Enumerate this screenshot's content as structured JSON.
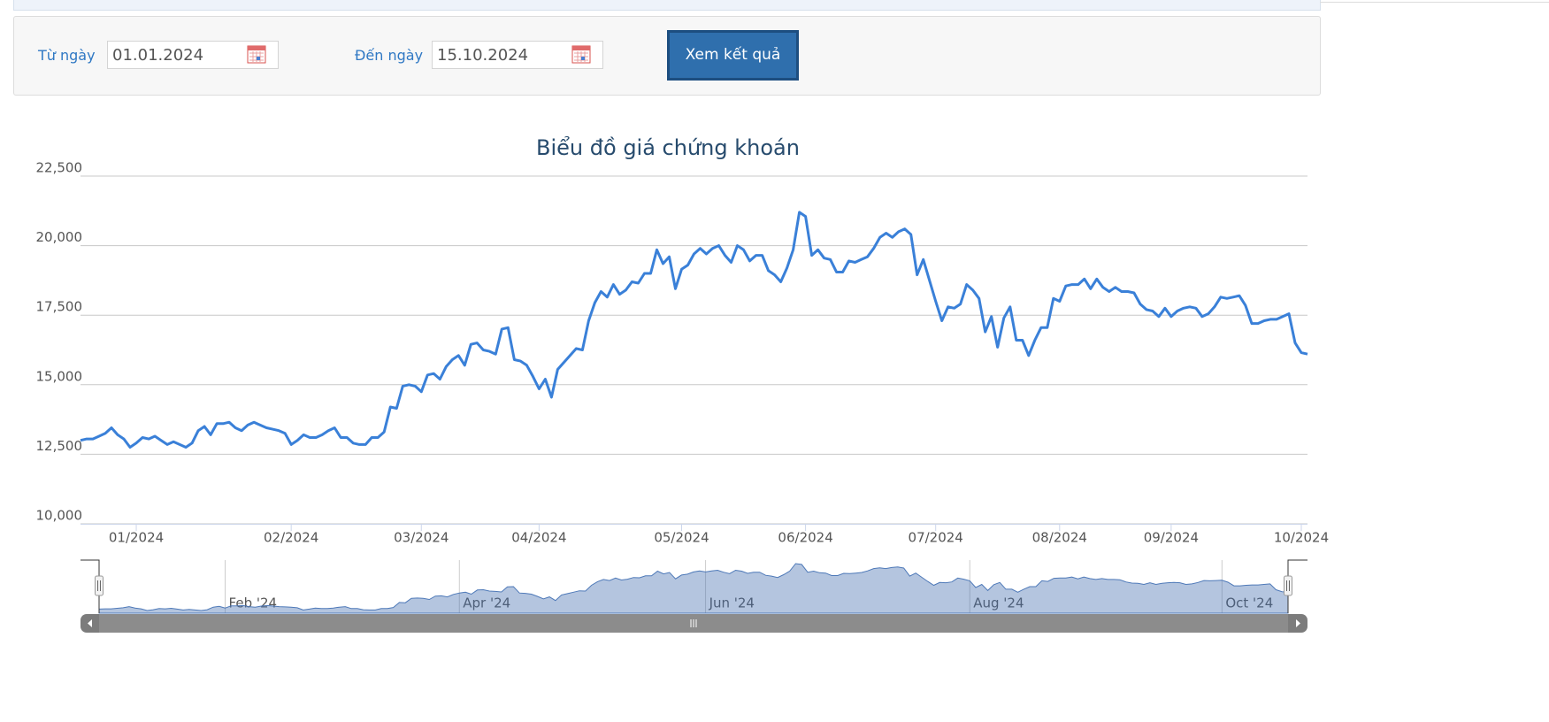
{
  "form": {
    "from": {
      "label": "Từ ngày",
      "value": "01.01.2024"
    },
    "to": {
      "label": "Đến ngày",
      "value": "15.10.2024"
    },
    "submit": "Xem kết quả"
  },
  "chart_data": {
    "type": "line",
    "title": "Biểu đồ giá chứng khoán",
    "color": "#3a80d8",
    "grid": true,
    "ylim": [
      10000,
      22500
    ],
    "yticks": [
      {
        "value": 10000,
        "label": "10,000"
      },
      {
        "value": 12500,
        "label": "12,500"
      },
      {
        "value": 15000,
        "label": "15,000"
      },
      {
        "value": 17500,
        "label": "17,500"
      },
      {
        "value": 20000,
        "label": "20,000"
      },
      {
        "value": 22500,
        "label": "22,500"
      }
    ],
    "categories": [
      null,
      null,
      null,
      null,
      null,
      null,
      null,
      null,
      null,
      "01/2024",
      null,
      null,
      null,
      null,
      null,
      null,
      null,
      null,
      null,
      null,
      null,
      null,
      null,
      null,
      null,
      null,
      null,
      null,
      null,
      null,
      null,
      null,
      null,
      null,
      "02/2024",
      null,
      null,
      null,
      null,
      null,
      null,
      null,
      null,
      null,
      null,
      null,
      null,
      null,
      null,
      null,
      null,
      null,
      null,
      null,
      null,
      "03/2024",
      null,
      null,
      null,
      null,
      null,
      null,
      null,
      null,
      null,
      null,
      null,
      null,
      null,
      null,
      null,
      null,
      null,
      null,
      "04/2024",
      null,
      null,
      null,
      null,
      null,
      null,
      null,
      null,
      null,
      null,
      null,
      null,
      null,
      null,
      null,
      null,
      null,
      null,
      null,
      null,
      null,
      null,
      "05/2024",
      null,
      null,
      null,
      null,
      null,
      null,
      null,
      null,
      null,
      null,
      null,
      null,
      null,
      null,
      null,
      null,
      null,
      null,
      null,
      "06/2024",
      null,
      null,
      null,
      null,
      null,
      null,
      null,
      null,
      null,
      null,
      null,
      null,
      null,
      null,
      null,
      null,
      null,
      null,
      null,
      null,
      "07/2024",
      null,
      null,
      null,
      null,
      null,
      null,
      null,
      null,
      null,
      null,
      null,
      null,
      null,
      null,
      null,
      null,
      null,
      null,
      null,
      "08/2024",
      null,
      null,
      null,
      null,
      null,
      null,
      null,
      null,
      null,
      null,
      null,
      null,
      null,
      null,
      null,
      null,
      null,
      "09/2024",
      null,
      null,
      null,
      null,
      null,
      null,
      null,
      null,
      null,
      null,
      null,
      null,
      null,
      null,
      null,
      null,
      null,
      null,
      null,
      null,
      "10/2024",
      null
    ],
    "navigator_categories": [
      null,
      null,
      null,
      null,
      null,
      null,
      null,
      null,
      null,
      null,
      null,
      null,
      null,
      null,
      null,
      null,
      null,
      null,
      null,
      null,
      null,
      "Feb '24",
      null,
      null,
      null,
      null,
      null,
      null,
      null,
      null,
      null,
      null,
      null,
      null,
      null,
      null,
      null,
      null,
      null,
      null,
      null,
      null,
      null,
      null,
      null,
      null,
      null,
      null,
      null,
      null,
      null,
      null,
      null,
      null,
      null,
      null,
      null,
      null,
      null,
      null,
      "Apr '24",
      null,
      null,
      null,
      null,
      null,
      null,
      null,
      null,
      null,
      null,
      null,
      null,
      null,
      null,
      null,
      null,
      null,
      null,
      null,
      null,
      null,
      null,
      null,
      null,
      null,
      null,
      null,
      null,
      null,
      null,
      null,
      null,
      null,
      null,
      null,
      null,
      null,
      null,
      null,
      null,
      "Jun '24",
      null,
      null,
      null,
      null,
      null,
      null,
      null,
      null,
      null,
      null,
      null,
      null,
      null,
      null,
      null,
      null,
      null,
      null,
      null,
      null,
      null,
      null,
      null,
      null,
      null,
      null,
      null,
      null,
      null,
      null,
      null,
      null,
      null,
      null,
      null,
      null,
      null,
      null,
      null,
      null,
      null,
      null,
      null,
      "Aug '24",
      null,
      null,
      null,
      null,
      null,
      null,
      null,
      null,
      null,
      null,
      null,
      null,
      null,
      null,
      null,
      null,
      null,
      null,
      null,
      null,
      null,
      null,
      null,
      null,
      null,
      null,
      null,
      null,
      null,
      null,
      null,
      null,
      null,
      null,
      null,
      null,
      null,
      null,
      null,
      null,
      null,
      "Oct '24",
      null,
      null,
      null,
      null,
      null,
      null,
      null,
      null,
      null,
      null,
      null
    ],
    "values": [
      13000,
      13050,
      13050,
      13150,
      13250,
      13450,
      13200,
      13050,
      12750,
      12900,
      13100,
      13050,
      13150,
      13000,
      12850,
      12950,
      12850,
      12750,
      12900,
      13350,
      13500,
      13200,
      13600,
      13600,
      13650,
      13450,
      13350,
      13550,
      13650,
      13550,
      13450,
      13400,
      13350,
      13250,
      12850,
      13000,
      13200,
      13100,
      13100,
      13200,
      13350,
      13450,
      13100,
      13100,
      12900,
      12850,
      12850,
      13100,
      13100,
      13300,
      14200,
      14150,
      14950,
      15000,
      14950,
      14750,
      15350,
      15400,
      15200,
      15650,
      15900,
      16050,
      15700,
      16450,
      16500,
      16250,
      16200,
      16100,
      17000,
      17050,
      15900,
      15850,
      15700,
      15300,
      14850,
      15200,
      14550,
      15550,
      15800,
      16050,
      16300,
      16250,
      17300,
      17950,
      18350,
      18150,
      18600,
      18250,
      18400,
      18700,
      18650,
      19000,
      19000,
      19850,
      19350,
      19600,
      18450,
      19150,
      19300,
      19700,
      19900,
      19700,
      19900,
      20000,
      19650,
      19400,
      20000,
      19850,
      19450,
      19650,
      19650,
      19100,
      18950,
      18700,
      19200,
      19850,
      21200,
      21050,
      19650,
      19850,
      19550,
      19500,
      19050,
      19050,
      19450,
      19400,
      19500,
      19600,
      19900,
      20300,
      20450,
      20300,
      20500,
      20600,
      20400,
      18950,
      19500,
      18750,
      18000,
      17300,
      17800,
      17750,
      17900,
      18600,
      18400,
      18100,
      16900,
      17450,
      16350,
      17400,
      17800,
      16600,
      16600,
      16050,
      16600,
      17050,
      17050,
      18100,
      18000,
      18550,
      18600,
      18600,
      18800,
      18450,
      18800,
      18500,
      18350,
      18500,
      18350,
      18350,
      18300,
      17900,
      17700,
      17650,
      17450,
      17750,
      17450,
      17650,
      17750,
      17800,
      17750,
      17450,
      17550,
      17800,
      18150,
      18100,
      18150,
      18200,
      17850,
      17200,
      17200,
      17300,
      17350,
      17350,
      17450,
      17550,
      16500,
      16150,
      16100
    ]
  }
}
